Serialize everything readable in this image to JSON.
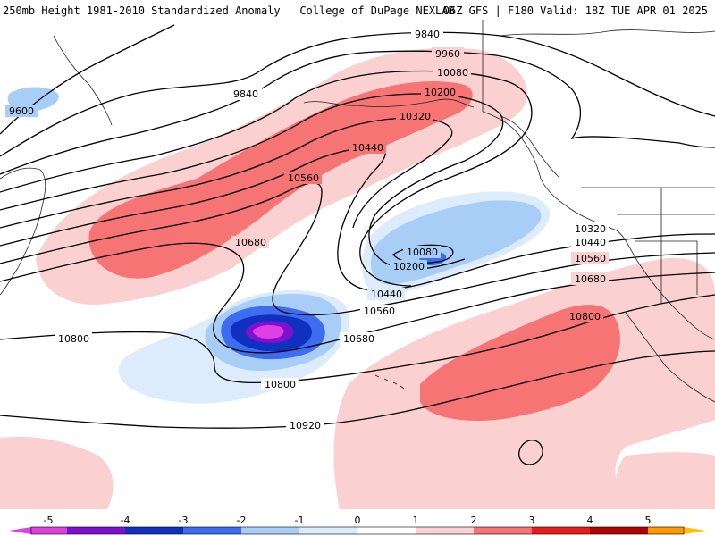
{
  "header": {
    "title_left": "250mb Height 1981-2010 Standardized Anomaly | College of DuPage NEXLAB",
    "title_right": "06Z GFS | F180 Valid: 18Z TUE APR 01 2025"
  },
  "contour_labels": [
    "9600",
    "9840",
    "9840",
    "9960",
    "10080",
    "10200",
    "10320",
    "10440",
    "10560",
    "10680",
    "10080",
    "10200",
    "10440",
    "10560",
    "10680",
    "10800",
    "10800",
    "10320",
    "10440",
    "10560",
    "10680",
    "10800",
    "10920"
  ],
  "colorbar": {
    "ticks": [
      "-5",
      "-4",
      "-3",
      "-2",
      "-1",
      "0",
      "1",
      "2",
      "3",
      "4",
      "5"
    ],
    "colors": {
      "minus5": "#e040e0",
      "minus4": "#8010d0",
      "minus3": "#1030c0",
      "minus2": "#3c6cf0",
      "minus1": "#a8cef8",
      "minus0": "#dcecfc",
      "plus0": "#ffffff",
      "plus1": "#fbd0d0",
      "plus2": "#f77474",
      "plus3": "#e81c1c",
      "plus4": "#b00000",
      "plus5": "#ff9a00",
      "over": "#ffc000"
    }
  }
}
